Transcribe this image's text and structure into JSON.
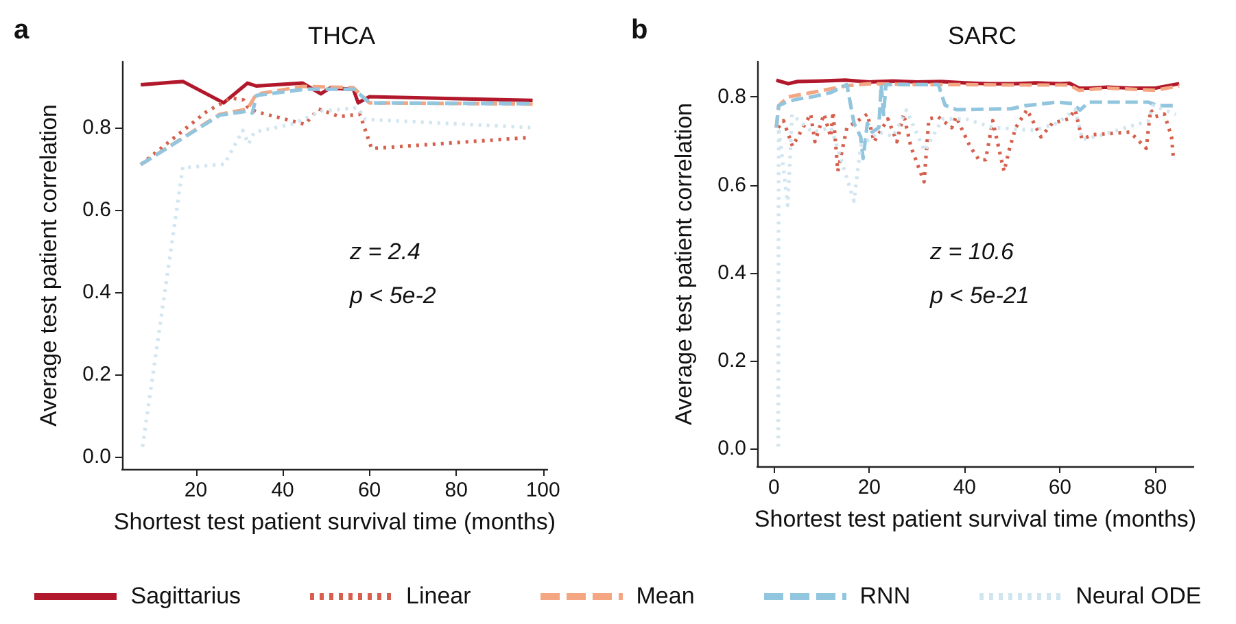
{
  "chart_data": [
    {
      "type": "line",
      "title": "THCA",
      "xlabel": "Shortest test patient survival time (months)",
      "ylabel": "Average test patient correlation",
      "annotations": [
        "a",
        "z = 2.4",
        "p < 5e-2"
      ],
      "xlim": [
        3,
        101
      ],
      "xticks": [
        20,
        40,
        60,
        80,
        100
      ],
      "ylim": [
        -0.03,
        0.96
      ],
      "yticks": [
        {
          "value": 0,
          "label": "0.0"
        },
        0.2,
        0.4,
        0.6,
        0.8
      ],
      "grid": false,
      "legend": "bottom",
      "marker": "none",
      "series": [
        {
          "name": "Sagittarius",
          "color": "#b2182b",
          "line_style": "solid",
          "x": [
            7.3,
            17,
            26.4,
            31.9,
            33.9,
            44.6,
            48.8,
            50.9,
            56.3,
            57.4,
            60,
            97.6
          ],
          "values": [
            0.904,
            0.912,
            0.86,
            0.908,
            0.901,
            0.908,
            0.882,
            0.896,
            0.893,
            0.86,
            0.875,
            0.866
          ]
        },
        {
          "name": "Linear",
          "color": "#d6604d",
          "line_style": "dotted",
          "x": [
            7.3,
            22.4,
            28.1,
            31,
            31.9,
            34,
            45.1,
            48.3,
            53,
            57.8,
            60.5,
            97.1
          ],
          "values": [
            0.71,
            0.838,
            0.872,
            0.867,
            0.85,
            0.838,
            0.808,
            0.845,
            0.827,
            0.832,
            0.749,
            0.776
          ]
        },
        {
          "name": "Mean",
          "color": "#f4a582",
          "line_style": "dashed",
          "x": [
            7.3,
            25.5,
            31.9,
            33.9,
            44.6,
            56.3,
            60,
            97.6
          ],
          "values": [
            0.71,
            0.832,
            0.845,
            0.881,
            0.9,
            0.897,
            0.86,
            0.857
          ]
        },
        {
          "name": "RNN",
          "color": "#92c5de",
          "line_style": "dashed",
          "x": [
            7.3,
            25.5,
            32,
            33,
            34,
            45,
            56.5,
            60,
            97.6
          ],
          "values": [
            0.71,
            0.83,
            0.84,
            0.835,
            0.878,
            0.893,
            0.893,
            0.86,
            0.858
          ]
        },
        {
          "name": "Neural ODE",
          "color": "#d1e5f0",
          "line_style": "dotted",
          "x": [
            7.7,
            17,
            18.1,
            26.6,
            30.8,
            32.1,
            33.5,
            42.5,
            48.8,
            57.4,
            59,
            97.1
          ],
          "values": [
            0.024,
            0.704,
            0.703,
            0.711,
            0.793,
            0.76,
            0.789,
            0.809,
            0.84,
            0.848,
            0.82,
            0.8
          ]
        }
      ]
    },
    {
      "type": "line",
      "title": "SARC",
      "xlabel": "Shortest test patient survival time (months)",
      "ylabel": "Average test patient correlation",
      "annotations": [
        "b",
        "z = 10.6",
        "p < 5e-21"
      ],
      "xlim": [
        -3.5,
        88
      ],
      "xticks": [
        0,
        20,
        40,
        60,
        80
      ],
      "ylim": [
        -0.04,
        0.88
      ],
      "yticks": [
        {
          "value": 0,
          "label": "0.0"
        },
        0.2,
        0.4,
        0.6,
        0.8
      ],
      "grid": false,
      "marker": "none",
      "series": [
        {
          "color": "#b2182b",
          "line_style": "solid",
          "x": [
            0.5,
            3,
            5,
            10,
            15,
            20,
            25,
            30,
            35,
            40,
            45,
            50,
            55,
            60,
            62,
            64,
            66,
            70,
            75,
            80,
            85
          ],
          "values": [
            0.838,
            0.83,
            0.835,
            0.836,
            0.838,
            0.834,
            0.836,
            0.834,
            0.835,
            0.832,
            0.83,
            0.83,
            0.832,
            0.83,
            0.831,
            0.82,
            0.82,
            0.822,
            0.82,
            0.82,
            0.83
          ]
        },
        {
          "color": "#d6604d",
          "line_style": "dotted",
          "x": [
            0.9,
            2,
            3.9,
            7.7,
            8.6,
            10.5,
            11.9,
            12.4,
            13.4,
            15.3,
            18.2,
            19.6,
            21,
            23.9,
            25.8,
            27.2,
            28.7,
            30.1,
            31.5,
            32.5,
            34.4,
            37.3,
            38.2,
            41.1,
            43,
            44.4,
            45.9,
            47.8,
            48.3,
            49.3,
            50.7,
            53.1,
            56,
            58.4,
            61.8,
            63.2,
            64.6,
            67,
            74.7,
            78.1,
            79,
            80,
            81.9,
            83.4,
            83.8
          ],
          "values": [
            0.73,
            0.746,
            0.688,
            0.761,
            0.698,
            0.761,
            0.709,
            0.766,
            0.631,
            0.73,
            0.75,
            0.761,
            0.698,
            0.75,
            0.698,
            0.761,
            0.688,
            0.647,
            0.607,
            0.75,
            0.755,
            0.73,
            0.755,
            0.688,
            0.657,
            0.657,
            0.746,
            0.652,
            0.631,
            0.678,
            0.73,
            0.771,
            0.709,
            0.74,
            0.75,
            0.771,
            0.704,
            0.714,
            0.72,
            0.683,
            0.771,
            0.755,
            0.761,
            0.709,
            0.659
          ]
        },
        {
          "color": "#f4a582",
          "line_style": "dashed",
          "x": [
            0.5,
            1,
            3,
            8,
            15,
            20,
            30,
            40,
            50,
            62,
            64,
            70,
            80,
            85
          ],
          "values": [
            0.73,
            0.78,
            0.8,
            0.81,
            0.825,
            0.83,
            0.828,
            0.828,
            0.827,
            0.827,
            0.815,
            0.82,
            0.815,
            0.825
          ]
        },
        {
          "color": "#92c5de",
          "line_style": "dashed",
          "x": [
            0.5,
            1,
            3,
            5,
            8,
            12,
            15.3,
            16.8,
            18.2,
            18.7,
            19.6,
            20.6,
            22,
            22.5,
            23,
            23.5,
            34.5,
            35.9,
            38.3,
            49.8,
            52.7,
            59.4,
            62.7,
            64.2,
            66,
            78.5,
            80.5,
            84.3
          ],
          "values": [
            0.73,
            0.78,
            0.79,
            0.795,
            0.8,
            0.81,
            0.828,
            0.74,
            0.709,
            0.66,
            0.74,
            0.72,
            0.73,
            0.828,
            0.76,
            0.828,
            0.828,
            0.781,
            0.771,
            0.773,
            0.78,
            0.788,
            0.785,
            0.77,
            0.788,
            0.788,
            0.78,
            0.78
          ]
        },
        {
          "color": "#d1e5f0",
          "line_style": "dotted",
          "x": [
            0.9,
            1,
            2.9,
            3.8,
            8,
            12,
            16.8,
            18.2,
            22,
            25,
            27.8,
            31.6,
            35.4,
            40.2,
            46,
            54.6,
            59.4,
            63.2,
            64.7,
            69,
            73.8,
            78.5,
            79.5,
            84.3
          ],
          "values": [
            0.005,
            0.73,
            0.553,
            0.76,
            0.72,
            0.73,
            0.563,
            0.688,
            0.72,
            0.71,
            0.77,
            0.677,
            0.75,
            0.75,
            0.73,
            0.724,
            0.74,
            0.771,
            0.703,
            0.714,
            0.73,
            0.745,
            0.781,
            0.76
          ]
        }
      ]
    }
  ]
}
